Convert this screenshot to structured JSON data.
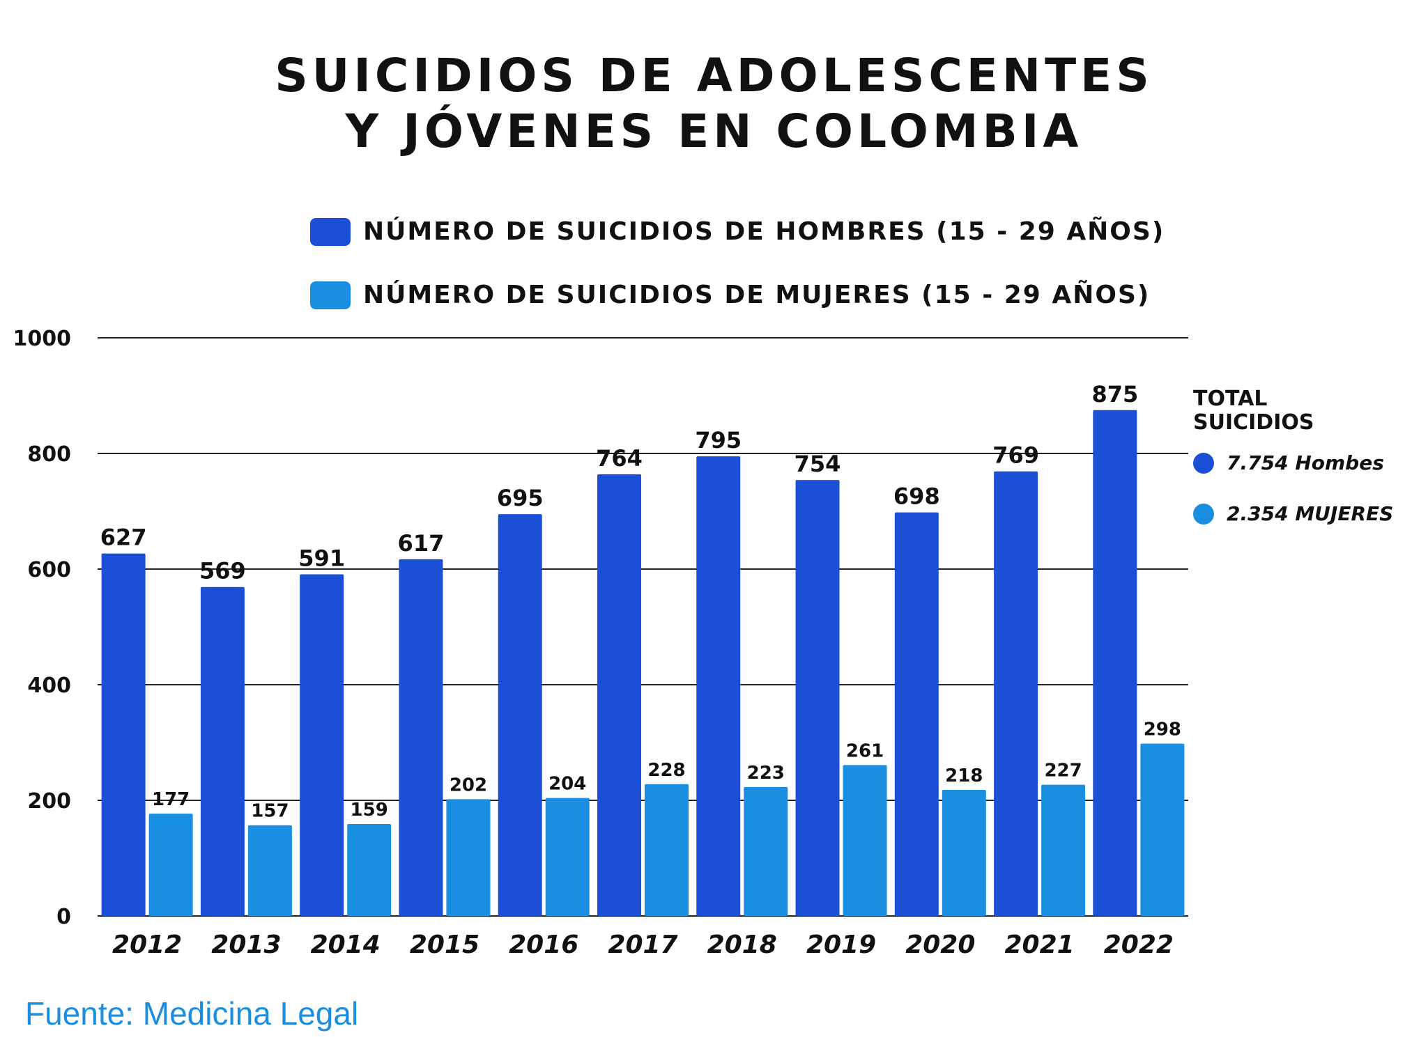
{
  "chart_data": {
    "type": "bar",
    "title": "SUICIDIOS DE ADOLESCENTES Y JÓVENES EN COLOMBIA",
    "title_lines": [
      "SUICIDIOS DE ADOLESCENTES",
      "Y JÓVENES EN COLOMBIA"
    ],
    "categories": [
      "2012",
      "2013",
      "2014",
      "2015",
      "2016",
      "2017",
      "2018",
      "2019",
      "2020",
      "2021",
      "2022"
    ],
    "series": [
      {
        "name": "NÚMERO DE SUICIDIOS DE HOMBRES (15 - 29 AÑOS)",
        "values": [
          627,
          569,
          591,
          617,
          695,
          764,
          795,
          754,
          698,
          769,
          875
        ],
        "color": "#1a4fd6"
      },
      {
        "name": "NÚMERO DE SUICIDIOS DE MUJERES (15 - 29 AÑOS)",
        "values": [
          177,
          157,
          159,
          202,
          204,
          228,
          223,
          261,
          218,
          227,
          298
        ],
        "color": "#1a8ee0"
      }
    ],
    "ylim": [
      0,
      1000
    ],
    "yticks": [
      0,
      200,
      400,
      600,
      800,
      1000
    ],
    "grid": true,
    "legend_placement": "top",
    "xlabel": "",
    "ylabel": ""
  },
  "totals": {
    "title": "TOTAL SUICIDIOS",
    "men": "7.754 Hombes",
    "women": "2.354 MUJERES"
  },
  "source": "Fuente: Medicina Legal"
}
